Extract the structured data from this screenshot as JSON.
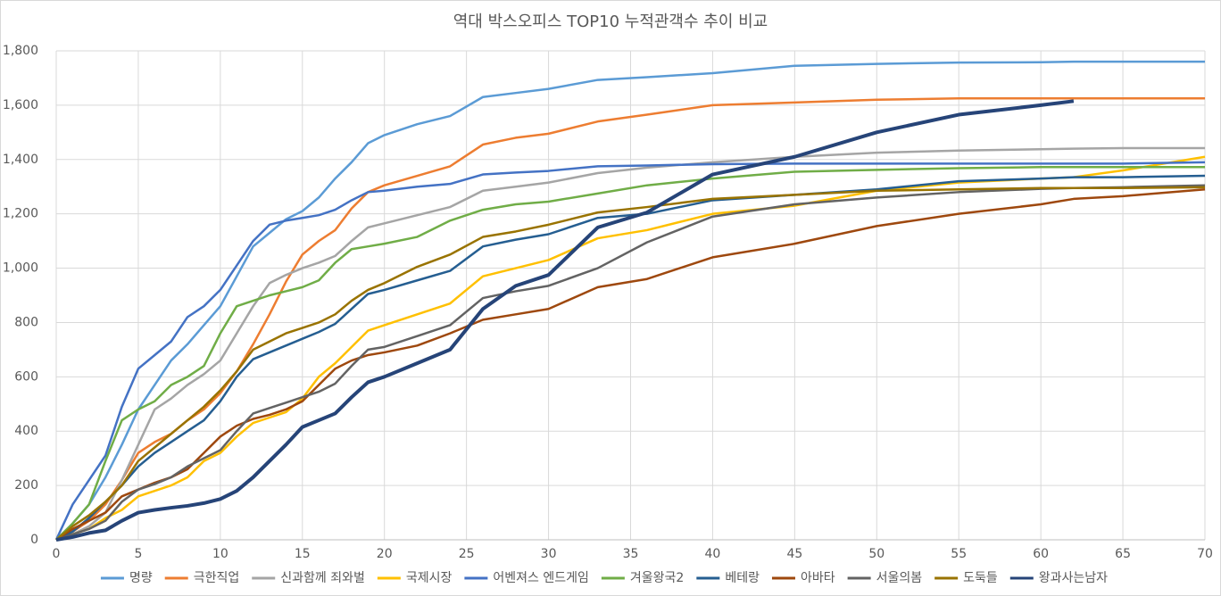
{
  "chart_data": {
    "type": "line",
    "title": "역대 박스오피스 TOP10 누적관객수 추이 비교",
    "x": [
      0,
      1,
      2,
      3,
      4,
      5,
      6,
      7,
      8,
      9,
      10,
      11,
      12,
      13,
      14,
      15,
      16,
      17,
      18,
      19,
      20,
      22,
      24,
      26,
      28,
      30,
      33,
      36,
      40,
      45,
      50,
      55,
      60,
      62,
      65,
      70
    ],
    "xlim": [
      0,
      70
    ],
    "xticks": [
      0,
      5,
      10,
      15,
      20,
      25,
      30,
      35,
      40,
      45,
      50,
      55,
      60,
      65,
      70
    ],
    "ylim": [
      0,
      1800
    ],
    "yticks": [
      0,
      200,
      400,
      600,
      800,
      {
        "value": 1000,
        "label": "1,000"
      },
      {
        "value": 1200,
        "label": "1,200"
      },
      {
        "value": 1400,
        "label": "1,400"
      },
      {
        "value": 1600,
        "label": "1,600"
      },
      {
        "value": 1800,
        "label": "1,800"
      }
    ],
    "grid": true,
    "legend": "bottom",
    "series": [
      {
        "name": "명량",
        "color": "#5b9bd5",
        "values": [
          0,
          60,
          130,
          230,
          350,
          480,
          570,
          660,
          720,
          790,
          860,
          970,
          1080,
          1130,
          1180,
          1210,
          1260,
          1330,
          1390,
          1460,
          1490,
          1530,
          1560,
          1630,
          1645,
          1660,
          1693,
          1703,
          1718,
          1745,
          1752,
          1757,
          1758,
          1760,
          1760,
          1760
        ]
      },
      {
        "name": "극한직업",
        "color": "#ed7d31",
        "values": [
          0,
          30,
          70,
          130,
          220,
          320,
          360,
          390,
          440,
          480,
          540,
          620,
          720,
          830,
          950,
          1050,
          1100,
          1140,
          1220,
          1280,
          1305,
          1340,
          1375,
          1455,
          1480,
          1495,
          1540,
          1565,
          1600,
          1610,
          1620,
          1625,
          1625,
          1625,
          1625,
          1625
        ]
      },
      {
        "name": "신과함께 죄와벌",
        "color": "#a5a5a5",
        "values": [
          0,
          20,
          50,
          100,
          220,
          350,
          480,
          520,
          570,
          610,
          660,
          760,
          860,
          945,
          975,
          1000,
          1020,
          1045,
          1100,
          1150,
          1165,
          1195,
          1225,
          1285,
          1300,
          1315,
          1350,
          1370,
          1390,
          1410,
          1425,
          1433,
          1438,
          1440,
          1442,
          1442
        ]
      },
      {
        "name": "국제시장",
        "color": "#ffc000",
        "values": [
          0,
          20,
          40,
          80,
          110,
          160,
          180,
          200,
          230,
          290,
          320,
          380,
          430,
          450,
          470,
          520,
          600,
          650,
          710,
          770,
          790,
          830,
          870,
          970,
          1000,
          1030,
          1110,
          1140,
          1200,
          1230,
          1285,
          1315,
          1330,
          1335,
          1360,
          1410
        ]
      },
      {
        "name": "어벤져스 엔드게임",
        "color": "#4472c4",
        "values": [
          0,
          130,
          220,
          310,
          490,
          630,
          680,
          730,
          820,
          860,
          920,
          1010,
          1100,
          1160,
          1175,
          1185,
          1195,
          1215,
          1250,
          1280,
          1285,
          1300,
          1310,
          1345,
          1352,
          1358,
          1375,
          1378,
          1383,
          1385,
          1385,
          1385,
          1385,
          1385,
          1385,
          1390
        ]
      },
      {
        "name": "겨울왕국2",
        "color": "#70ad47",
        "values": [
          0,
          60,
          130,
          290,
          440,
          480,
          510,
          570,
          600,
          640,
          760,
          860,
          880,
          900,
          915,
          930,
          955,
          1020,
          1070,
          1080,
          1090,
          1115,
          1175,
          1215,
          1235,
          1245,
          1275,
          1305,
          1330,
          1355,
          1362,
          1368,
          1372,
          1372,
          1372,
          1372
        ]
      },
      {
        "name": "베테랑",
        "color": "#255e91",
        "values": [
          0,
          30,
          80,
          140,
          200,
          270,
          320,
          360,
          400,
          440,
          510,
          600,
          665,
          690,
          715,
          740,
          765,
          795,
          850,
          905,
          920,
          955,
          990,
          1080,
          1105,
          1125,
          1185,
          1200,
          1250,
          1270,
          1290,
          1320,
          1330,
          1335,
          1335,
          1340
        ]
      },
      {
        "name": "아바타",
        "color": "#9e480e",
        "values": [
          0,
          40,
          70,
          100,
          160,
          185,
          210,
          230,
          260,
          320,
          380,
          420,
          445,
          460,
          480,
          510,
          570,
          630,
          660,
          680,
          690,
          715,
          760,
          810,
          830,
          850,
          930,
          960,
          1040,
          1090,
          1155,
          1200,
          1235,
          1255,
          1265,
          1290
        ]
      },
      {
        "name": "서울의봄",
        "color": "#636363",
        "values": [
          0,
          20,
          40,
          70,
          140,
          185,
          205,
          230,
          270,
          300,
          330,
          400,
          465,
          485,
          505,
          525,
          545,
          575,
          640,
          700,
          710,
          750,
          790,
          890,
          915,
          935,
          1000,
          1095,
          1190,
          1235,
          1260,
          1280,
          1292,
          1295,
          1298,
          1305
        ]
      },
      {
        "name": "도둑들",
        "color": "#997300",
        "values": [
          0,
          50,
          90,
          140,
          200,
          290,
          340,
          390,
          440,
          490,
          550,
          620,
          700,
          730,
          760,
          780,
          800,
          830,
          880,
          920,
          945,
          1005,
          1050,
          1115,
          1135,
          1160,
          1205,
          1225,
          1255,
          1270,
          1285,
          1290,
          1295,
          1295,
          1295,
          1298
        ]
      },
      {
        "name": "왕과사는남자",
        "color": "#264478",
        "values": [
          0,
          10,
          25,
          35,
          70,
          100,
          110,
          118,
          125,
          135,
          150,
          180,
          230,
          290,
          350,
          415,
          440,
          465,
          525,
          580,
          600,
          650,
          700,
          850,
          935,
          975,
          1150,
          1205,
          1345,
          1410,
          1500,
          1565,
          1600,
          1615,
          null,
          null
        ]
      }
    ]
  }
}
